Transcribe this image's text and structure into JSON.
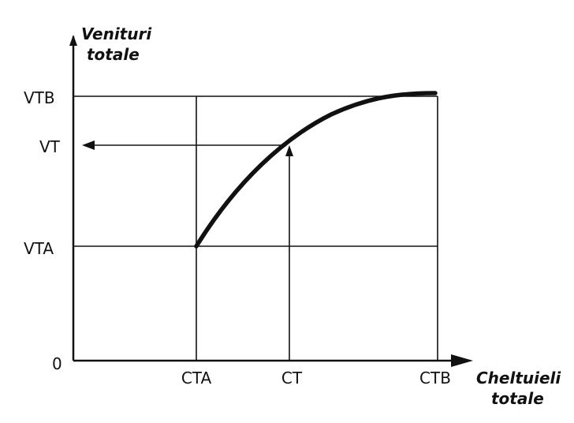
{
  "diagram": {
    "y_axis_title": [
      "Venituri",
      "totale"
    ],
    "x_axis_title": [
      "Cheltuieli",
      "totale"
    ],
    "y_labels": {
      "top": "VTB",
      "mid": "VT",
      "low": "VTA",
      "origin": "0"
    },
    "x_labels": {
      "left": "CTA",
      "mid": "CT",
      "right": "CTB"
    },
    "colors": {
      "ink": "#111111",
      "background": "#ffffff"
    }
  }
}
